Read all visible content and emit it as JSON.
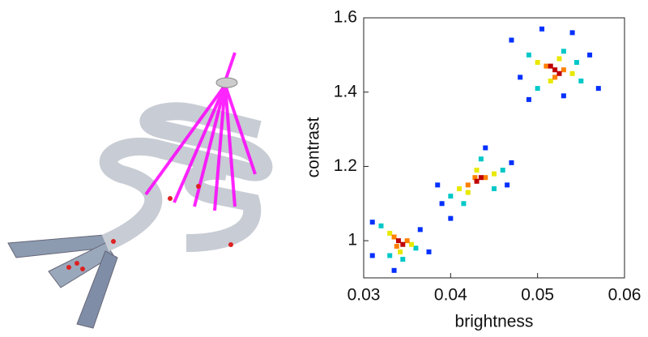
{
  "chart_data": {
    "type": "scatter",
    "x_label": "brightness",
    "y_label": "contrast",
    "xlim": [
      0.03,
      0.06
    ],
    "ylim": [
      0.9,
      1.6
    ],
    "xticks": [
      0.03,
      0.04,
      0.05,
      0.06
    ],
    "yticks": [
      1,
      1.2,
      1.4,
      1.6
    ],
    "series": [
      {
        "color": "#0030ff",
        "x": [
          0.031,
          0.0375,
          0.0335,
          0.0365,
          0.031,
          0.039,
          0.047,
          0.044,
          0.04,
          0.0465,
          0.0385,
          0.047,
          0.057,
          0.054,
          0.049,
          0.056,
          0.048,
          0.053,
          0.0505
        ],
        "y": [
          1.05,
          0.97,
          0.92,
          1.03,
          0.96,
          1.1,
          1.21,
          1.25,
          1.06,
          1.15,
          1.15,
          1.54,
          1.41,
          1.56,
          1.38,
          1.5,
          1.44,
          1.39,
          1.57
        ]
      },
      {
        "color": "#00c8c8",
        "x": [
          0.032,
          0.036,
          0.0345,
          0.033,
          0.04,
          0.046,
          0.0435,
          0.0415,
          0.045,
          0.049,
          0.055,
          0.053,
          0.05,
          0.0545
        ],
        "y": [
          1.04,
          0.98,
          0.95,
          0.96,
          1.12,
          1.19,
          1.22,
          1.1,
          1.14,
          1.5,
          1.43,
          1.51,
          1.41,
          1.48
        ]
      },
      {
        "color": "#e8e800",
        "x": [
          0.033,
          0.0355,
          0.0342,
          0.041,
          0.045,
          0.043,
          0.042,
          0.05,
          0.054,
          0.0525,
          0.0515
        ],
        "y": [
          1.02,
          0.99,
          0.97,
          1.14,
          1.18,
          1.19,
          1.13,
          1.48,
          1.45,
          1.49,
          1.43
        ]
      },
      {
        "color": "#ff8000",
        "x": [
          0.0335,
          0.035,
          0.0338,
          0.042,
          0.044,
          0.0428,
          0.051,
          0.053,
          0.052
        ],
        "y": [
          1.01,
          1.0,
          0.985,
          1.15,
          1.17,
          1.17,
          1.47,
          1.46,
          1.44
        ]
      },
      {
        "color": "#c00000",
        "x": [
          0.034,
          0.0345,
          0.043,
          0.0435,
          0.052,
          0.0525,
          0.0515
        ],
        "y": [
          1.0,
          0.99,
          1.16,
          1.17,
          1.46,
          1.45,
          1.47
        ]
      }
    ]
  }
}
